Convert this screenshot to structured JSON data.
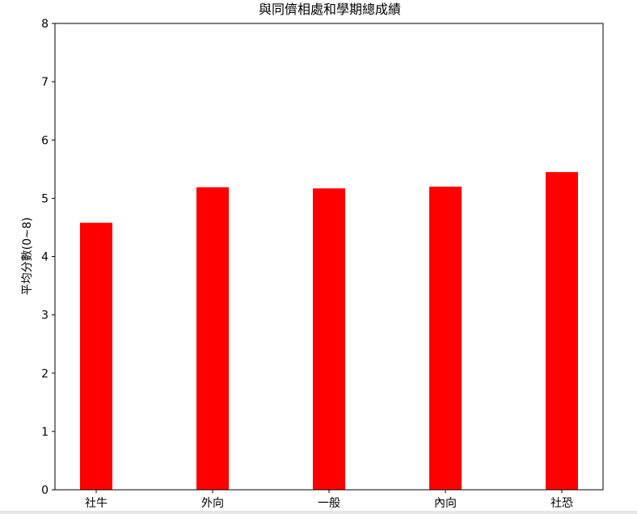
{
  "chart_data": {
    "type": "bar",
    "title": "與同儕相處和學期總成績",
    "xlabel": "",
    "ylabel": "平均分數(0~8)",
    "categories": [
      "社牛",
      "外向",
      "一般",
      "內向",
      "社恐"
    ],
    "values": [
      4.58,
      5.19,
      5.17,
      5.2,
      5.45
    ],
    "ylim": [
      0,
      8
    ],
    "yticks": [
      "0",
      "1",
      "2",
      "3",
      "4",
      "5",
      "6",
      "7",
      "8"
    ],
    "bar_color": "#ff0000",
    "grid": false,
    "legend": "none"
  }
}
